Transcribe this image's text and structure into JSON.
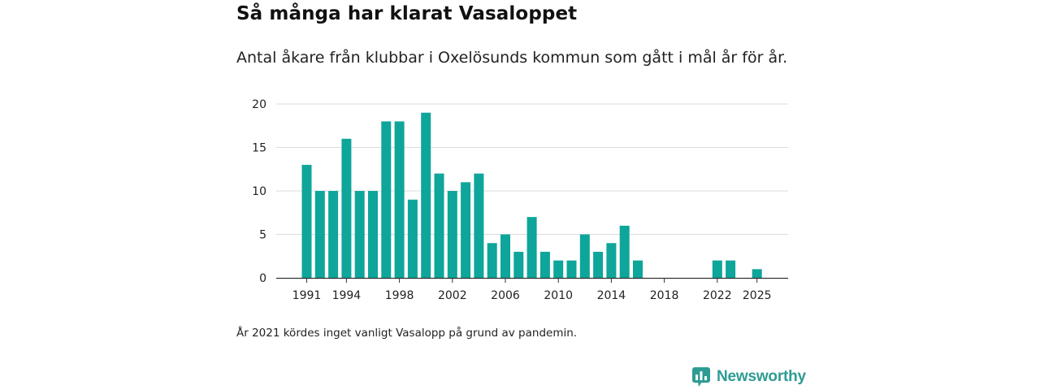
{
  "title": "Så många har klarat Vasaloppet",
  "subtitle": "Antal åkare från klubbar i Oxelösunds kommun som gått i mål år för år.",
  "footnote": "År 2021 kördes inget vanligt Vasalopp på grund av pandemin.",
  "brand": {
    "name": "Newsworthy",
    "icon": "newsworthy-logo-icon",
    "color": "#2e9c93"
  },
  "colors": {
    "bar": "#0ea59a",
    "grid": "#dcdcdc",
    "axis": "#333333",
    "tick_text": "#222222"
  },
  "chart_data": {
    "type": "bar",
    "title": "Så många har klarat Vasaloppet",
    "xlabel": "",
    "ylabel": "",
    "ylim": [
      0,
      20
    ],
    "yticks": [
      0,
      5,
      10,
      15,
      20
    ],
    "xticks": [
      "1991",
      "1994",
      "1998",
      "2002",
      "2006",
      "2010",
      "2014",
      "2018",
      "2022",
      "2025"
    ],
    "categories": [
      1991,
      1992,
      1993,
      1994,
      1995,
      1996,
      1997,
      1998,
      1999,
      2000,
      2001,
      2002,
      2003,
      2004,
      2005,
      2006,
      2007,
      2008,
      2009,
      2010,
      2011,
      2012,
      2013,
      2014,
      2015,
      2016,
      2017,
      2018,
      2019,
      2020,
      2022,
      2023,
      2024,
      2025
    ],
    "values": [
      13,
      10,
      10,
      16,
      10,
      10,
      18,
      18,
      9,
      19,
      12,
      10,
      11,
      12,
      4,
      5,
      3,
      7,
      3,
      2,
      2,
      5,
      3,
      4,
      6,
      2,
      0,
      0,
      0,
      0,
      2,
      2,
      0,
      1
    ],
    "grid": true,
    "legend": "none"
  }
}
